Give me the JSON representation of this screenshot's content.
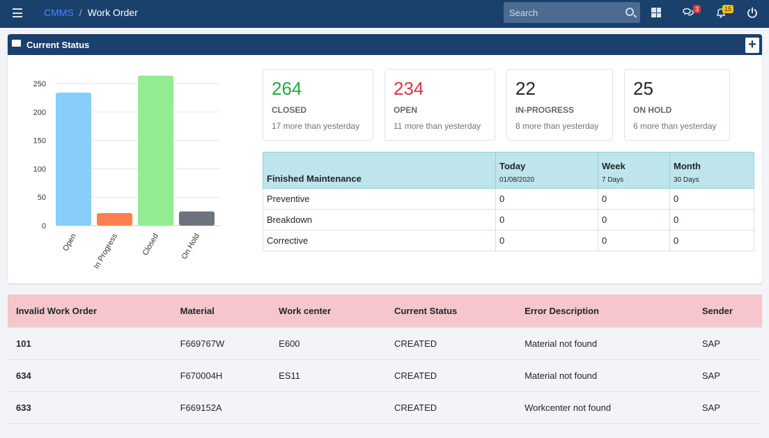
{
  "header": {
    "brand": "CMMS",
    "separator": "/",
    "page": "Work Order",
    "search_placeholder": "Search",
    "messages_count": "3",
    "notifications_count": "15"
  },
  "card": {
    "title": "Current Status",
    "add_label": "+"
  },
  "stats": [
    {
      "value": "264",
      "label": "CLOSED",
      "delta": "17 more than yesterday",
      "color": "#28a745"
    },
    {
      "value": "234",
      "label": "OPEN",
      "delta": "11 more than yesterday",
      "color": "#dc3545"
    },
    {
      "value": "22",
      "label": "IN-PROGRESS",
      "delta": "8 more than yesterday",
      "color": "#212529"
    },
    {
      "value": "25",
      "label": "ON HOLD",
      "delta": "6 more than yesterday",
      "color": "#212529"
    }
  ],
  "maintenance": {
    "title": "Finished Maintenance",
    "columns": [
      {
        "label": "Today",
        "sub": "01/08/2020"
      },
      {
        "label": "Week",
        "sub": "7 Days"
      },
      {
        "label": "Month",
        "sub": "30 Days"
      }
    ],
    "rows": [
      [
        "Preventive",
        "0",
        "0",
        "0"
      ],
      [
        "Breakdown",
        "0",
        "0",
        "0"
      ],
      [
        "Corrective",
        "0",
        "0",
        "0"
      ]
    ]
  },
  "invalid": {
    "headers": [
      "Invalid Work Order",
      "Material",
      "Work center",
      "Current Status",
      "Error Description",
      "Sender"
    ],
    "rows": [
      [
        "101",
        "F669767W",
        "E600",
        "CREATED",
        "Material not found",
        "SAP"
      ],
      [
        "634",
        "F670004H",
        "ES11",
        "CREATED",
        "Material not found",
        "SAP"
      ],
      [
        "633",
        "F669152A",
        "",
        "CREATED",
        "Workcenter not found",
        "SAP"
      ]
    ]
  },
  "chart_data": {
    "type": "bar",
    "categories": [
      "Open",
      "In Progress",
      "Closed",
      "On Hold"
    ],
    "values": [
      234,
      22,
      264,
      25
    ],
    "colors": [
      "#87cefa",
      "#ff7f50",
      "#90ee90",
      "#6c737c"
    ],
    "yticks": [
      "0",
      "50",
      "100",
      "150",
      "200",
      "250"
    ],
    "ylim": [
      0,
      250
    ],
    "title": "",
    "xlabel": "",
    "ylabel": ""
  }
}
